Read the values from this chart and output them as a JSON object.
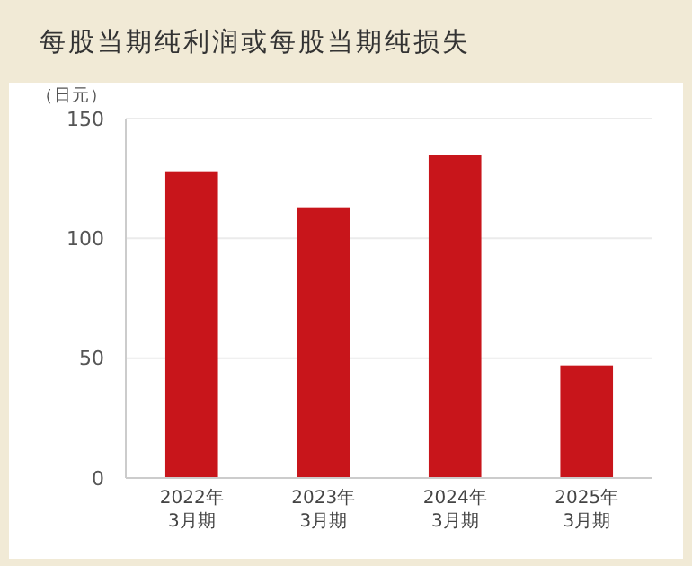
{
  "chart_data": {
    "type": "bar",
    "title": "每股当期纯利润或每股当期纯损失",
    "ylabel": "（日元）",
    "categories": [
      "2022年\n3月期",
      "2023年\n3月期",
      "2024年\n3月期",
      "2025年\n3月期"
    ],
    "values": [
      128,
      113,
      135,
      47
    ],
    "color": "#c8151b",
    "ylim": [
      0,
      150
    ],
    "yticks": [
      0,
      50,
      100,
      150
    ],
    "grid": "y"
  }
}
